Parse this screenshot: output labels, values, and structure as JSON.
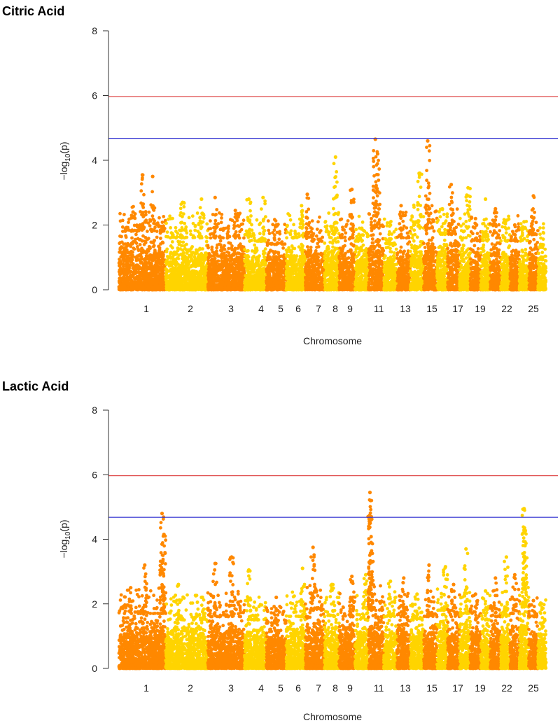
{
  "chart_data": [
    {
      "type": "scatter",
      "subtype": "manhattan",
      "title": "Citric Acid",
      "xlabel": "Chromosome",
      "ylabel_prefix": "−log",
      "ylabel_sub": "10",
      "ylabel_suffix": "(p)",
      "ylim": [
        0,
        8
      ],
      "yticks": [
        0,
        2,
        4,
        6,
        8
      ],
      "thresholds": [
        {
          "name": "significant",
          "value": 5.97,
          "color": "#e05050"
        },
        {
          "name": "suggestive",
          "value": 4.68,
          "color": "#3030d0"
        }
      ],
      "colors": [
        "#ff8800",
        "#ffd400"
      ],
      "chromosome_tick_labels": [
        "1",
        "2",
        "3",
        "4",
        "5",
        "6",
        "7",
        "8",
        "9",
        "11",
        "13",
        "15",
        "17",
        "19",
        "22",
        "25"
      ],
      "chromosomes": [
        {
          "chr": 1,
          "size": 1.76,
          "base": 1.8,
          "peaks": [
            {
              "pos": 0.5,
              "height": 3.55
            },
            {
              "pos": 0.72,
              "height": 3.5
            },
            {
              "pos": 0.3,
              "height": 2.4
            }
          ]
        },
        {
          "chr": 2,
          "size": 1.58,
          "base": 1.6,
          "peaks": [
            {
              "pos": 0.4,
              "height": 2.7
            },
            {
              "pos": 0.85,
              "height": 2.8
            }
          ]
        },
        {
          "chr": 3,
          "size": 1.38,
          "base": 1.6,
          "peaks": [
            {
              "pos": 0.2,
              "height": 2.85
            },
            {
              "pos": 0.75,
              "height": 2.45
            }
          ]
        },
        {
          "chr": 4,
          "size": 0.82,
          "base": 1.5,
          "peaks": [
            {
              "pos": 0.2,
              "height": 2.8
            },
            {
              "pos": 0.85,
              "height": 2.85
            }
          ]
        },
        {
          "chr": 5,
          "size": 0.75,
          "base": 1.4,
          "peaks": [
            {
              "pos": 0.5,
              "height": 2.0
            }
          ]
        },
        {
          "chr": 6,
          "size": 0.72,
          "base": 1.6,
          "peaks": [
            {
              "pos": 0.8,
              "height": 2.6
            }
          ]
        },
        {
          "chr": 7,
          "size": 0.72,
          "base": 1.5,
          "peaks": [
            {
              "pos": 0.1,
              "height": 2.95
            }
          ]
        },
        {
          "chr": 8,
          "size": 0.55,
          "base": 1.7,
          "peaks": [
            {
              "pos": 0.75,
              "height": 4.1
            }
          ]
        },
        {
          "chr": 9,
          "size": 0.6,
          "base": 1.6,
          "peaks": [
            {
              "pos": 0.8,
              "height": 3.1
            }
          ]
        },
        {
          "chr": 10,
          "size": 0.5,
          "base": 1.5,
          "peaks": [
            {
              "pos": 0.5,
              "height": 1.9
            }
          ]
        },
        {
          "chr": 11,
          "size": 0.58,
          "base": 1.9,
          "peaks": [
            {
              "pos": 0.45,
              "height": 4.65
            },
            {
              "pos": 0.6,
              "height": 4.2
            }
          ]
        },
        {
          "chr": 12,
          "size": 0.5,
          "base": 1.4,
          "peaks": [
            {
              "pos": 0.5,
              "height": 2.0
            }
          ]
        },
        {
          "chr": 13,
          "size": 0.5,
          "base": 1.6,
          "peaks": [
            {
              "pos": 0.3,
              "height": 2.6
            }
          ]
        },
        {
          "chr": 14,
          "size": 0.5,
          "base": 1.9,
          "peaks": [
            {
              "pos": 0.7,
              "height": 3.6
            }
          ]
        },
        {
          "chr": 15,
          "size": 0.5,
          "base": 1.9,
          "peaks": [
            {
              "pos": 0.3,
              "height": 4.6
            }
          ]
        },
        {
          "chr": 16,
          "size": 0.4,
          "base": 1.7,
          "peaks": [
            {
              "pos": 0.5,
              "height": 2.5
            }
          ]
        },
        {
          "chr": 17,
          "size": 0.45,
          "base": 1.7,
          "peaks": [
            {
              "pos": 0.3,
              "height": 3.25
            }
          ]
        },
        {
          "chr": 18,
          "size": 0.4,
          "base": 1.6,
          "peaks": [
            {
              "pos": 0.8,
              "height": 3.15
            }
          ]
        },
        {
          "chr": 19,
          "size": 0.4,
          "base": 1.5,
          "peaks": [
            {
              "pos": 0.5,
              "height": 2.2
            }
          ]
        },
        {
          "chr": 20,
          "size": 0.35,
          "base": 1.5,
          "peaks": [
            {
              "pos": 0.5,
              "height": 2.8
            }
          ]
        },
        {
          "chr": 21,
          "size": 0.4,
          "base": 1.6,
          "peaks": [
            {
              "pos": 0.5,
              "height": 2.5
            }
          ]
        },
        {
          "chr": 22,
          "size": 0.35,
          "base": 1.5,
          "peaks": [
            {
              "pos": 0.5,
              "height": 2.1
            }
          ]
        },
        {
          "chr": 23,
          "size": 0.35,
          "base": 1.5,
          "peaks": [
            {
              "pos": 0.5,
              "height": 2.0
            }
          ]
        },
        {
          "chr": 24,
          "size": 0.35,
          "base": 1.5,
          "peaks": [
            {
              "pos": 0.5,
              "height": 2.1
            }
          ]
        },
        {
          "chr": 25,
          "size": 0.35,
          "base": 1.7,
          "peaks": [
            {
              "pos": 0.5,
              "height": 2.9
            }
          ]
        },
        {
          "chr": 26,
          "size": 0.3,
          "base": 1.3,
          "peaks": [
            {
              "pos": 0.5,
              "height": 1.4
            }
          ]
        }
      ]
    },
    {
      "type": "scatter",
      "subtype": "manhattan",
      "title": "Lactic Acid",
      "xlabel": "Chromosome",
      "ylabel_prefix": "−log",
      "ylabel_sub": "10",
      "ylabel_suffix": "(p)",
      "ylim": [
        0,
        8
      ],
      "yticks": [
        0,
        2,
        4,
        6,
        8
      ],
      "thresholds": [
        {
          "name": "significant",
          "value": 5.97,
          "color": "#e05050"
        },
        {
          "name": "suggestive",
          "value": 4.68,
          "color": "#3030d0"
        }
      ],
      "colors": [
        "#ff8800",
        "#ffd400"
      ],
      "chromosome_tick_labels": [
        "1",
        "2",
        "3",
        "4",
        "5",
        "6",
        "7",
        "8",
        "9",
        "11",
        "13",
        "15",
        "17",
        "19",
        "22",
        "25"
      ],
      "chromosomes": [
        {
          "chr": 1,
          "size": 1.76,
          "base": 1.7,
          "peaks": [
            {
              "pos": 0.92,
              "height": 4.8
            },
            {
              "pos": 0.96,
              "height": 4.15
            },
            {
              "pos": 0.55,
              "height": 3.2
            },
            {
              "pos": 0.25,
              "height": 2.5
            }
          ]
        },
        {
          "chr": 2,
          "size": 1.58,
          "base": 1.5,
          "peaks": [
            {
              "pos": 0.3,
              "height": 2.6
            },
            {
              "pos": 0.85,
              "height": 2.2
            }
          ]
        },
        {
          "chr": 3,
          "size": 1.38,
          "base": 1.6,
          "peaks": [
            {
              "pos": 0.2,
              "height": 3.25
            },
            {
              "pos": 0.65,
              "height": 3.45
            }
          ]
        },
        {
          "chr": 4,
          "size": 0.82,
          "base": 1.5,
          "peaks": [
            {
              "pos": 0.2,
              "height": 3.05
            }
          ]
        },
        {
          "chr": 5,
          "size": 0.75,
          "base": 1.4,
          "peaks": [
            {
              "pos": 0.5,
              "height": 2.2
            }
          ]
        },
        {
          "chr": 6,
          "size": 0.72,
          "base": 1.6,
          "peaks": [
            {
              "pos": 0.85,
              "height": 3.1
            }
          ]
        },
        {
          "chr": 7,
          "size": 0.72,
          "base": 1.8,
          "peaks": [
            {
              "pos": 0.4,
              "height": 3.75
            }
          ]
        },
        {
          "chr": 8,
          "size": 0.55,
          "base": 1.6,
          "peaks": [
            {
              "pos": 0.5,
              "height": 2.6
            }
          ]
        },
        {
          "chr": 9,
          "size": 0.6,
          "base": 1.6,
          "peaks": [
            {
              "pos": 0.8,
              "height": 2.85
            }
          ]
        },
        {
          "chr": 10,
          "size": 0.5,
          "base": 1.5,
          "peaks": [
            {
              "pos": 0.8,
              "height": 2.9
            }
          ]
        },
        {
          "chr": 11,
          "size": 0.58,
          "base": 1.8,
          "peaks": [
            {
              "pos": 0.1,
              "height": 5.45
            },
            {
              "pos": 0.14,
              "height": 5.2
            },
            {
              "pos": 0.18,
              "height": 3.9
            }
          ]
        },
        {
          "chr": 12,
          "size": 0.5,
          "base": 1.6,
          "peaks": [
            {
              "pos": 0.5,
              "height": 2.7
            }
          ]
        },
        {
          "chr": 13,
          "size": 0.5,
          "base": 1.6,
          "peaks": [
            {
              "pos": 0.5,
              "height": 2.8
            }
          ]
        },
        {
          "chr": 14,
          "size": 0.5,
          "base": 1.5,
          "peaks": [
            {
              "pos": 0.5,
              "height": 2.3
            }
          ]
        },
        {
          "chr": 15,
          "size": 0.5,
          "base": 1.6,
          "peaks": [
            {
              "pos": 0.4,
              "height": 3.2
            }
          ]
        },
        {
          "chr": 16,
          "size": 0.4,
          "base": 1.8,
          "peaks": [
            {
              "pos": 0.8,
              "height": 3.15
            }
          ]
        },
        {
          "chr": 17,
          "size": 0.45,
          "base": 1.6,
          "peaks": [
            {
              "pos": 0.5,
              "height": 2.6
            }
          ]
        },
        {
          "chr": 18,
          "size": 0.4,
          "base": 1.7,
          "peaks": [
            {
              "pos": 0.6,
              "height": 3.7
            }
          ]
        },
        {
          "chr": 19,
          "size": 0.4,
          "base": 1.5,
          "peaks": [
            {
              "pos": 0.5,
              "height": 2.3
            }
          ]
        },
        {
          "chr": 20,
          "size": 0.35,
          "base": 1.5,
          "peaks": [
            {
              "pos": 0.5,
              "height": 2.4
            }
          ]
        },
        {
          "chr": 21,
          "size": 0.4,
          "base": 1.6,
          "peaks": [
            {
              "pos": 0.5,
              "height": 2.8
            }
          ]
        },
        {
          "chr": 22,
          "size": 0.35,
          "base": 1.6,
          "peaks": [
            {
              "pos": 0.6,
              "height": 3.45
            }
          ]
        },
        {
          "chr": 23,
          "size": 0.35,
          "base": 1.7,
          "peaks": [
            {
              "pos": 0.5,
              "height": 2.9
            }
          ]
        },
        {
          "chr": 24,
          "size": 0.35,
          "base": 1.9,
          "peaks": [
            {
              "pos": 0.5,
              "height": 4.95
            },
            {
              "pos": 0.55,
              "height": 4.35
            },
            {
              "pos": 0.6,
              "height": 3.8
            }
          ]
        },
        {
          "chr": 25,
          "size": 0.35,
          "base": 1.6,
          "peaks": [
            {
              "pos": 0.5,
              "height": 2.1
            }
          ]
        },
        {
          "chr": 26,
          "size": 0.3,
          "base": 1.4,
          "peaks": [
            {
              "pos": 0.5,
              "height": 2.0
            }
          ]
        }
      ]
    }
  ]
}
